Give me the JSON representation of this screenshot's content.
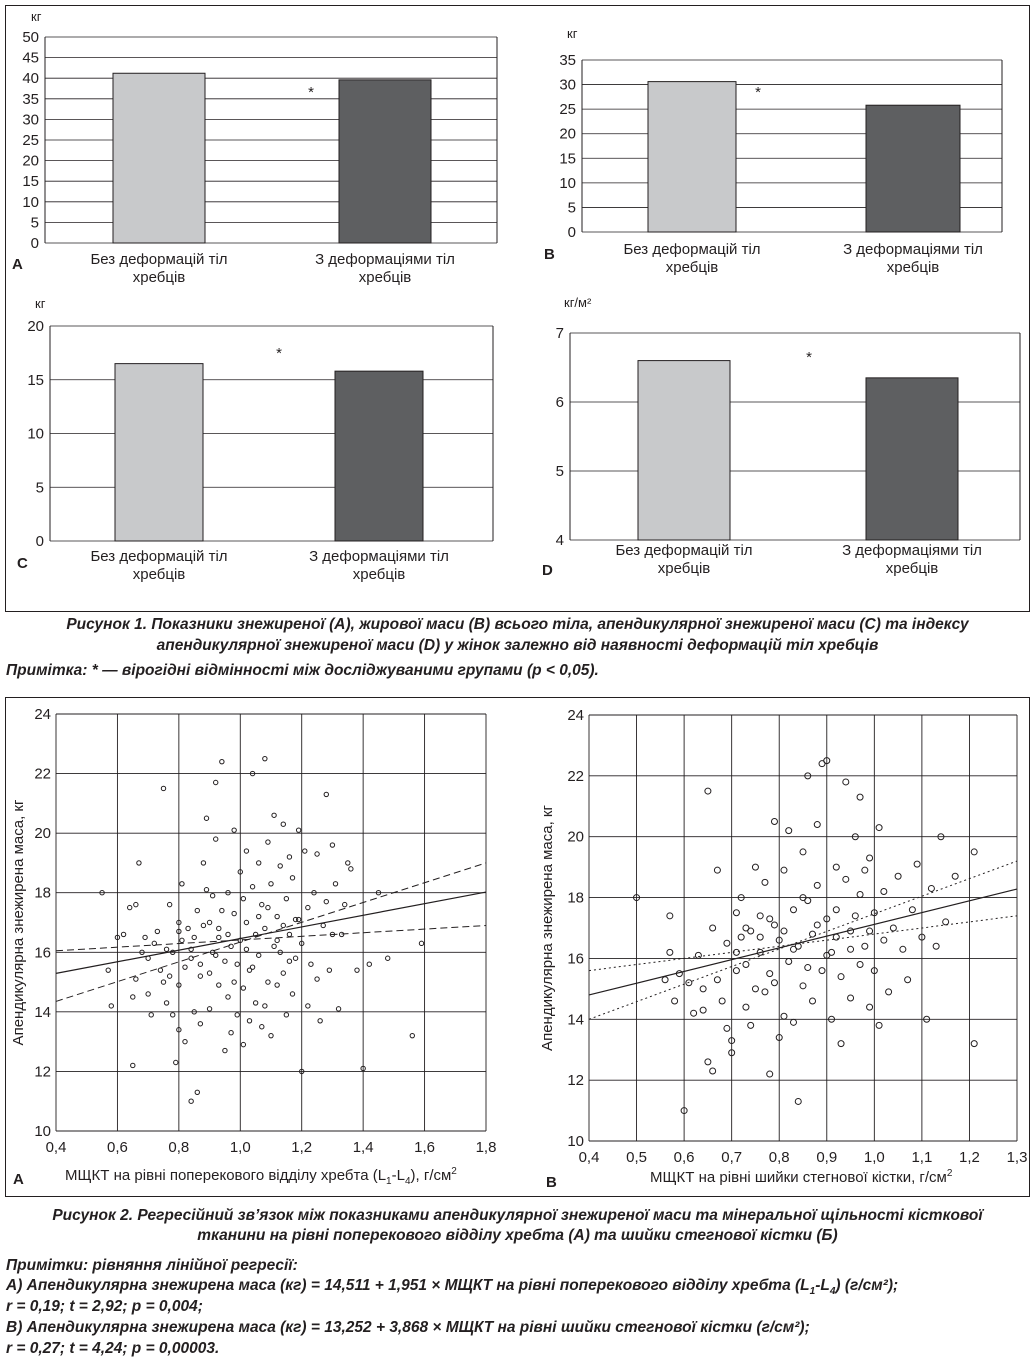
{
  "figure1": {
    "caption_line1": "Рисунок 1. Показники знежиреної (А), жирової маси (В) всього тіла, апендикулярної знежиреної маси (С) та індексу",
    "caption_line2": "апендикулярної знежиреної маси (D) у жінок залежно від наявності деформацій тіл хребців",
    "note": "Примітка: * — вірогідні відмінності між досліджуваними групами (р < 0,05).",
    "colors": {
      "group1": "#c8c9cb",
      "group2": "#5e5f61"
    }
  },
  "figure2": {
    "caption_line1": "Рисунок 2. Регресійний зв’язок між показниками апендикулярної знежиреної маси та мінеральної щільності кісткової",
    "caption_line2": "тканини на рівні поперекового відділу хребта (А) та шийки стегнової кістки (Б)",
    "notes_title": "Примітки: рівняння лінійної регресії:",
    "noteA_line1_pre": "А) Апендикулярна знежирена маса (кг) = 14,511 + 1,951 × МЩКТ на рівні поперекового відділу хребта (L",
    "noteA_sub1": "1",
    "noteA_mid": "-L",
    "noteA_sub2": "4",
    "noteA_line1_post": ") (г/см²);",
    "noteA_line2": "r = 0,19; t = 2,92; p = 0,004;",
    "noteB_line1": "В) Апендикулярна знежирена маса (кг) = 13,252 + 3,868 × МЩКТ на рівні шийки стегнової кістки (г/см²);",
    "noteB_line2": "r = 0,27; t = 4,24; p = 0,00003."
  },
  "chart_data": [
    {
      "panel": "А",
      "type": "bar",
      "ylabel": "кг",
      "categories": [
        "Без деформацій тіл хребців",
        "З деформаціями тіл хребців"
      ],
      "values": [
        41.2,
        39.6
      ],
      "ylim": [
        0,
        50
      ],
      "yticks": [
        0,
        5,
        10,
        15,
        20,
        25,
        30,
        35,
        40,
        45,
        50
      ],
      "significance": "*",
      "grid": true
    },
    {
      "panel": "В",
      "type": "bar",
      "ylabel": "кг",
      "categories": [
        "Без деформацій тіл хребців",
        "З деформаціями тіл хребців"
      ],
      "values": [
        30.6,
        25.8
      ],
      "ylim": [
        0,
        35
      ],
      "yticks": [
        0,
        5,
        10,
        15,
        20,
        25,
        30,
        35
      ],
      "significance": "*",
      "grid": true
    },
    {
      "panel": "С",
      "type": "bar",
      "ylabel": "кг",
      "categories": [
        "Без деформацій тіл хребців",
        "З деформаціями тіл хребців"
      ],
      "values": [
        16.5,
        15.8
      ],
      "ylim": [
        0,
        20
      ],
      "yticks": [
        0,
        5,
        10,
        15,
        20
      ],
      "significance": "*",
      "grid": true
    },
    {
      "panel": "D",
      "type": "bar",
      "ylabel": "кг/м²",
      "categories": [
        "Без деформацій тіл хребців",
        "З деформаціями тіл хребців"
      ],
      "values": [
        6.6,
        6.35
      ],
      "ylim": [
        4,
        7
      ],
      "yticks": [
        4,
        5,
        6,
        7
      ],
      "significance": "*",
      "grid": true
    },
    {
      "panel": "А",
      "type": "scatter",
      "xlabel": "МЩКТ на рівні поперекового відділу хребта (L1-L4), г/см²",
      "ylabel": "Апендикулярна знежирена маса, кг",
      "xlim": [
        0.4,
        1.8
      ],
      "ylim": [
        10,
        24
      ],
      "xticks": [
        "0,4",
        "0,6",
        "0,8",
        "1,0",
        "1,2",
        "1,4",
        "1,6",
        "1,8"
      ],
      "yticks": [
        "10",
        "12",
        "14",
        "16",
        "18",
        "20",
        "22",
        "24"
      ],
      "regression": {
        "intercept": 14.511,
        "slope": 1.951
      },
      "ci_lower": [
        [
          0.4,
          16.05
        ],
        [
          1.8,
          16.9
        ]
      ],
      "ci_upper": [
        [
          0.4,
          14.35
        ],
        [
          1.8,
          19.0
        ]
      ],
      "points": [
        [
          0.55,
          18.0
        ],
        [
          0.57,
          15.4
        ],
        [
          0.58,
          14.2
        ],
        [
          0.6,
          16.5
        ],
        [
          0.62,
          16.6
        ],
        [
          0.64,
          17.5
        ],
        [
          0.65,
          12.2
        ],
        [
          0.65,
          14.5
        ],
        [
          0.66,
          17.6
        ],
        [
          0.66,
          15.1
        ],
        [
          0.67,
          19.0
        ],
        [
          0.68,
          16.0
        ],
        [
          0.69,
          16.5
        ],
        [
          0.7,
          14.6
        ],
        [
          0.7,
          15.8
        ],
        [
          0.71,
          13.9
        ],
        [
          0.72,
          16.3
        ],
        [
          0.73,
          16.7
        ],
        [
          0.74,
          15.4
        ],
        [
          0.75,
          21.5
        ],
        [
          0.75,
          15.0
        ],
        [
          0.76,
          16.1
        ],
        [
          0.76,
          14.3
        ],
        [
          0.77,
          17.6
        ],
        [
          0.77,
          15.2
        ],
        [
          0.78,
          16.0
        ],
        [
          0.78,
          13.9
        ],
        [
          0.79,
          12.3
        ],
        [
          0.8,
          17.0
        ],
        [
          0.8,
          14.9
        ],
        [
          0.8,
          13.4
        ],
        [
          0.81,
          18.3
        ],
        [
          0.81,
          16.4
        ],
        [
          0.82,
          13.0
        ],
        [
          0.82,
          15.5
        ],
        [
          0.83,
          16.8
        ],
        [
          0.84,
          11.0
        ],
        [
          0.84,
          15.8
        ],
        [
          0.85,
          16.5
        ],
        [
          0.85,
          14.0
        ],
        [
          0.86,
          11.3
        ],
        [
          0.86,
          17.4
        ],
        [
          0.87,
          15.6
        ],
        [
          0.87,
          13.6
        ],
        [
          0.88,
          19.0
        ],
        [
          0.88,
          16.9
        ],
        [
          0.89,
          20.5
        ],
        [
          0.89,
          18.1
        ],
        [
          0.9,
          15.3
        ],
        [
          0.9,
          14.1
        ],
        [
          0.91,
          17.9
        ],
        [
          0.91,
          16.0
        ],
        [
          0.92,
          21.7
        ],
        [
          0.92,
          19.8
        ],
        [
          0.93,
          16.5
        ],
        [
          0.93,
          14.9
        ],
        [
          0.94,
          22.4
        ],
        [
          0.94,
          17.4
        ],
        [
          0.95,
          12.7
        ],
        [
          0.95,
          15.7
        ],
        [
          0.96,
          18.0
        ],
        [
          0.96,
          14.5
        ],
        [
          0.97,
          16.2
        ],
        [
          0.97,
          13.3
        ],
        [
          0.98,
          20.1
        ],
        [
          0.98,
          17.3
        ],
        [
          0.99,
          15.6
        ],
        [
          0.99,
          13.9
        ],
        [
          1.0,
          18.7
        ],
        [
          1.0,
          16.4
        ],
        [
          1.01,
          14.8
        ],
        [
          1.01,
          12.9
        ],
        [
          1.02,
          19.4
        ],
        [
          1.02,
          17.0
        ],
        [
          1.03,
          15.4
        ],
        [
          1.03,
          13.7
        ],
        [
          1.04,
          22.0
        ],
        [
          1.04,
          18.2
        ],
        [
          1.05,
          16.6
        ],
        [
          1.05,
          14.3
        ],
        [
          1.06,
          19.0
        ],
        [
          1.06,
          15.9
        ],
        [
          1.07,
          17.6
        ],
        [
          1.07,
          13.5
        ],
        [
          1.08,
          22.5
        ],
        [
          1.08,
          16.8
        ],
        [
          1.09,
          15.0
        ],
        [
          1.09,
          19.7
        ],
        [
          1.1,
          18.3
        ],
        [
          1.1,
          13.2
        ],
        [
          1.11,
          16.2
        ],
        [
          1.11,
          20.6
        ],
        [
          1.12,
          17.2
        ],
        [
          1.12,
          14.9
        ],
        [
          1.13,
          18.9
        ],
        [
          1.13,
          16.0
        ],
        [
          1.14,
          20.3
        ],
        [
          1.14,
          15.3
        ],
        [
          1.15,
          17.8
        ],
        [
          1.15,
          13.9
        ],
        [
          1.16,
          16.6
        ],
        [
          1.16,
          19.2
        ],
        [
          1.17,
          18.5
        ],
        [
          1.17,
          14.6
        ],
        [
          1.18,
          15.8
        ],
        [
          1.19,
          20.1
        ],
        [
          1.19,
          17.1
        ],
        [
          1.2,
          12.0
        ],
        [
          1.2,
          16.3
        ],
        [
          1.21,
          19.4
        ],
        [
          1.22,
          14.2
        ],
        [
          1.22,
          17.5
        ],
        [
          1.23,
          15.6
        ],
        [
          1.24,
          18.0
        ],
        [
          1.25,
          19.3
        ],
        [
          1.25,
          15.1
        ],
        [
          1.26,
          13.7
        ],
        [
          1.27,
          16.9
        ],
        [
          1.28,
          21.3
        ],
        [
          1.28,
          17.7
        ],
        [
          1.29,
          15.4
        ],
        [
          1.3,
          19.6
        ],
        [
          1.3,
          16.6
        ],
        [
          1.31,
          18.3
        ],
        [
          1.32,
          14.1
        ],
        [
          1.33,
          16.6
        ],
        [
          1.34,
          17.6
        ],
        [
          1.35,
          19.0
        ],
        [
          1.36,
          18.8
        ],
        [
          1.38,
          15.4
        ],
        [
          1.4,
          12.1
        ],
        [
          1.42,
          15.6
        ],
        [
          1.45,
          18.0
        ],
        [
          1.48,
          15.8
        ],
        [
          1.56,
          13.2
        ],
        [
          1.59,
          16.3
        ],
        [
          0.87,
          15.2
        ],
        [
          0.93,
          16.8
        ],
        [
          1.02,
          16.1
        ],
        [
          1.06,
          17.2
        ],
        [
          1.09,
          17.5
        ],
        [
          0.98,
          15.0
        ],
        [
          0.9,
          17.0
        ],
        [
          1.14,
          16.9
        ],
        [
          1.18,
          17.1
        ],
        [
          0.84,
          16.1
        ],
        [
          1.04,
          15.5
        ],
        [
          0.96,
          16.6
        ],
        [
          1.12,
          16.4
        ],
        [
          1.01,
          17.8
        ],
        [
          0.92,
          15.9
        ],
        [
          1.08,
          14.2
        ],
        [
          0.8,
          16.7
        ],
        [
          1.16,
          15.7
        ]
      ]
    },
    {
      "panel": "В",
      "type": "scatter",
      "xlabel": "МЩКТ на рівні шийки стегнової кістки, г/см²",
      "ylabel": "Апендикулярна знежирена маса, кг",
      "xlim": [
        0.4,
        1.3
      ],
      "ylim": [
        10,
        24
      ],
      "xticks": [
        "0,4",
        "0,5",
        "0,6",
        "0,7",
        "0,8",
        "0,9",
        "1,0",
        "1,1",
        "1,2",
        "1,3"
      ],
      "yticks": [
        "10",
        "12",
        "14",
        "16",
        "18",
        "20",
        "22",
        "24"
      ],
      "regression": {
        "intercept": 13.252,
        "slope": 3.868
      },
      "ci_lower": [
        [
          0.4,
          15.6
        ],
        [
          1.3,
          17.4
        ]
      ],
      "ci_upper": [
        [
          0.4,
          14.0
        ],
        [
          1.3,
          19.2
        ]
      ],
      "points": [
        [
          0.5,
          18.0
        ],
        [
          0.56,
          15.3
        ],
        [
          0.57,
          16.2
        ],
        [
          0.57,
          17.4
        ],
        [
          0.58,
          14.6
        ],
        [
          0.59,
          15.5
        ],
        [
          0.6,
          11.0
        ],
        [
          0.61,
          15.2
        ],
        [
          0.62,
          14.2
        ],
        [
          0.63,
          16.1
        ],
        [
          0.64,
          15.0
        ],
        [
          0.64,
          14.3
        ],
        [
          0.65,
          21.5
        ],
        [
          0.65,
          12.6
        ],
        [
          0.66,
          12.3
        ],
        [
          0.66,
          17.0
        ],
        [
          0.67,
          18.9
        ],
        [
          0.67,
          15.3
        ],
        [
          0.68,
          14.6
        ],
        [
          0.69,
          13.7
        ],
        [
          0.69,
          16.5
        ],
        [
          0.7,
          13.3
        ],
        [
          0.7,
          12.9
        ],
        [
          0.71,
          15.6
        ],
        [
          0.71,
          17.5
        ],
        [
          0.72,
          16.7
        ],
        [
          0.72,
          18.0
        ],
        [
          0.73,
          14.4
        ],
        [
          0.73,
          15.8
        ],
        [
          0.74,
          16.9
        ],
        [
          0.74,
          13.8
        ],
        [
          0.75,
          19.0
        ],
        [
          0.75,
          15.0
        ],
        [
          0.76,
          17.4
        ],
        [
          0.76,
          16.2
        ],
        [
          0.77,
          14.9
        ],
        [
          0.77,
          18.5
        ],
        [
          0.78,
          12.2
        ],
        [
          0.78,
          15.5
        ],
        [
          0.79,
          20.5
        ],
        [
          0.79,
          17.1
        ],
        [
          0.8,
          13.4
        ],
        [
          0.8,
          16.6
        ],
        [
          0.81,
          18.9
        ],
        [
          0.81,
          14.1
        ],
        [
          0.82,
          20.2
        ],
        [
          0.82,
          15.9
        ],
        [
          0.83,
          17.6
        ],
        [
          0.83,
          13.9
        ],
        [
          0.84,
          11.3
        ],
        [
          0.84,
          16.4
        ],
        [
          0.85,
          19.5
        ],
        [
          0.85,
          15.1
        ],
        [
          0.86,
          22.0
        ],
        [
          0.86,
          17.9
        ],
        [
          0.87,
          14.6
        ],
        [
          0.87,
          16.8
        ],
        [
          0.88,
          20.4
        ],
        [
          0.88,
          18.4
        ],
        [
          0.89,
          15.6
        ],
        [
          0.89,
          22.4
        ],
        [
          0.9,
          17.3
        ],
        [
          0.9,
          22.5
        ],
        [
          0.91,
          16.2
        ],
        [
          0.91,
          14.0
        ],
        [
          0.92,
          19.0
        ],
        [
          0.92,
          17.6
        ],
        [
          0.93,
          15.4
        ],
        [
          0.93,
          13.2
        ],
        [
          0.94,
          21.8
        ],
        [
          0.94,
          18.6
        ],
        [
          0.95,
          16.9
        ],
        [
          0.95,
          14.7
        ],
        [
          0.96,
          20.0
        ],
        [
          0.96,
          17.4
        ],
        [
          0.97,
          15.8
        ],
        [
          0.97,
          21.3
        ],
        [
          0.98,
          18.9
        ],
        [
          0.98,
          16.4
        ],
        [
          0.99,
          14.4
        ],
        [
          0.99,
          19.3
        ],
        [
          1.0,
          17.5
        ],
        [
          1.0,
          15.6
        ],
        [
          1.01,
          20.3
        ],
        [
          1.01,
          13.8
        ],
        [
          1.02,
          18.2
        ],
        [
          1.02,
          16.6
        ],
        [
          1.03,
          14.9
        ],
        [
          1.04,
          17.0
        ],
        [
          1.05,
          18.7
        ],
        [
          1.06,
          16.3
        ],
        [
          1.07,
          15.3
        ],
        [
          1.08,
          17.6
        ],
        [
          1.09,
          19.1
        ],
        [
          1.1,
          16.7
        ],
        [
          1.11,
          14.0
        ],
        [
          1.12,
          18.3
        ],
        [
          1.13,
          16.4
        ],
        [
          1.14,
          20.0
        ],
        [
          1.15,
          17.2
        ],
        [
          1.17,
          18.7
        ],
        [
          1.21,
          13.2
        ],
        [
          1.21,
          19.5
        ],
        [
          0.81,
          16.9
        ],
        [
          0.86,
          15.7
        ],
        [
          0.9,
          16.1
        ],
        [
          0.76,
          16.7
        ],
        [
          0.95,
          16.3
        ],
        [
          0.83,
          16.3
        ],
        [
          0.79,
          15.2
        ],
        [
          0.88,
          17.1
        ],
        [
          0.73,
          17.0
        ],
        [
          0.99,
          16.9
        ],
        [
          0.85,
          18.0
        ],
        [
          0.92,
          16.7
        ],
        [
          0.78,
          17.3
        ],
        [
          0.71,
          16.2
        ],
        [
          0.97,
          18.1
        ]
      ]
    }
  ]
}
